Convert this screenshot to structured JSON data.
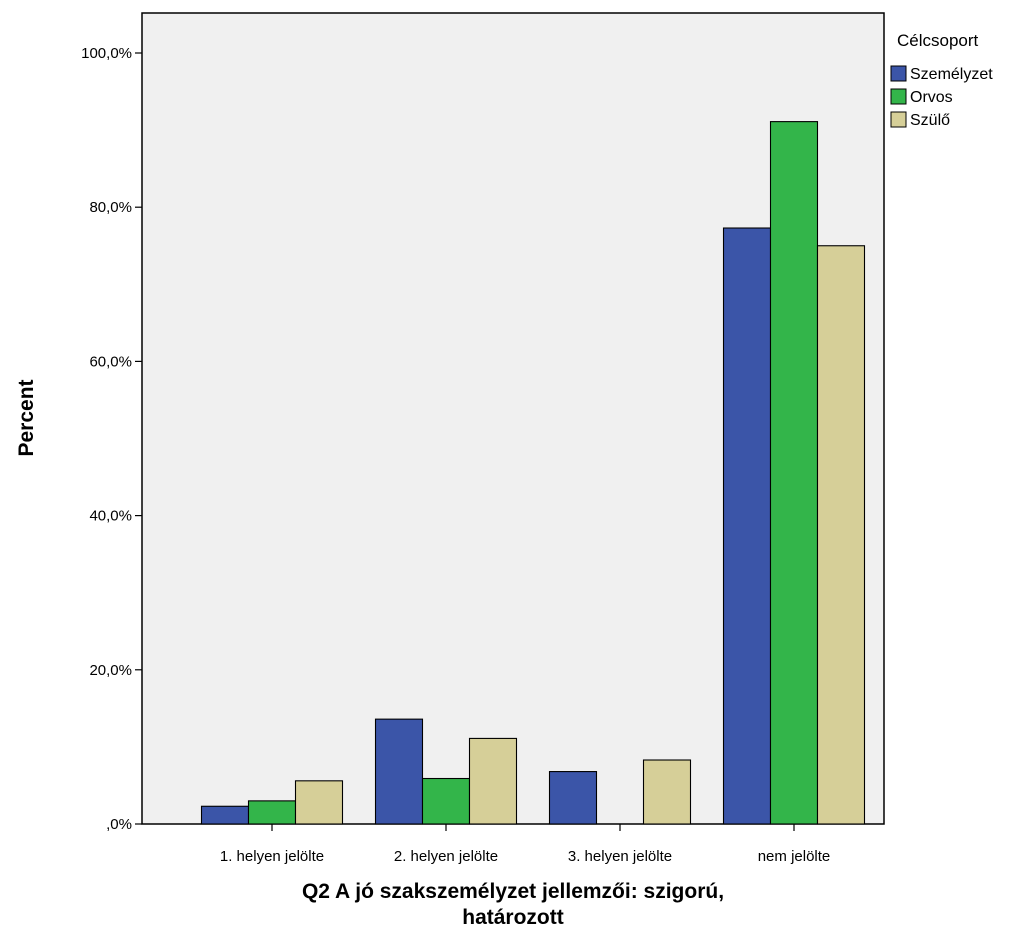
{
  "chart_data": {
    "type": "bar",
    "categories": [
      "1. helyen jelölte",
      "2. helyen jelölte",
      "3. helyen jelölte",
      "nem jelölte"
    ],
    "series": [
      {
        "name": "Személyzet",
        "color": "#3b55a8",
        "values": [
          2.3,
          13.6,
          6.8,
          77.3
        ]
      },
      {
        "name": "Orvos",
        "color": "#33b54a",
        "values": [
          3.0,
          5.9,
          0.0,
          91.1
        ]
      },
      {
        "name": "Szülő",
        "color": "#d6cf98",
        "values": [
          5.6,
          11.1,
          8.3,
          75.0
        ]
      }
    ],
    "title": "",
    "xlabel_lines": [
      "Q2 A jó szakszemélyzet jellemzői: szigorú,",
      "határozott"
    ],
    "ylabel": "Percent",
    "ylim": [
      0,
      100
    ],
    "yticks": [
      0,
      20,
      40,
      60,
      80,
      100
    ],
    "ytick_labels": [
      ",0%",
      "20,0%",
      "40,0%",
      "60,0%",
      "80,0%",
      "100,0%"
    ],
    "legend_title": "Célcsoport",
    "legend_position": "top-right",
    "grid": false,
    "plot_background": "#f0f0f0"
  }
}
